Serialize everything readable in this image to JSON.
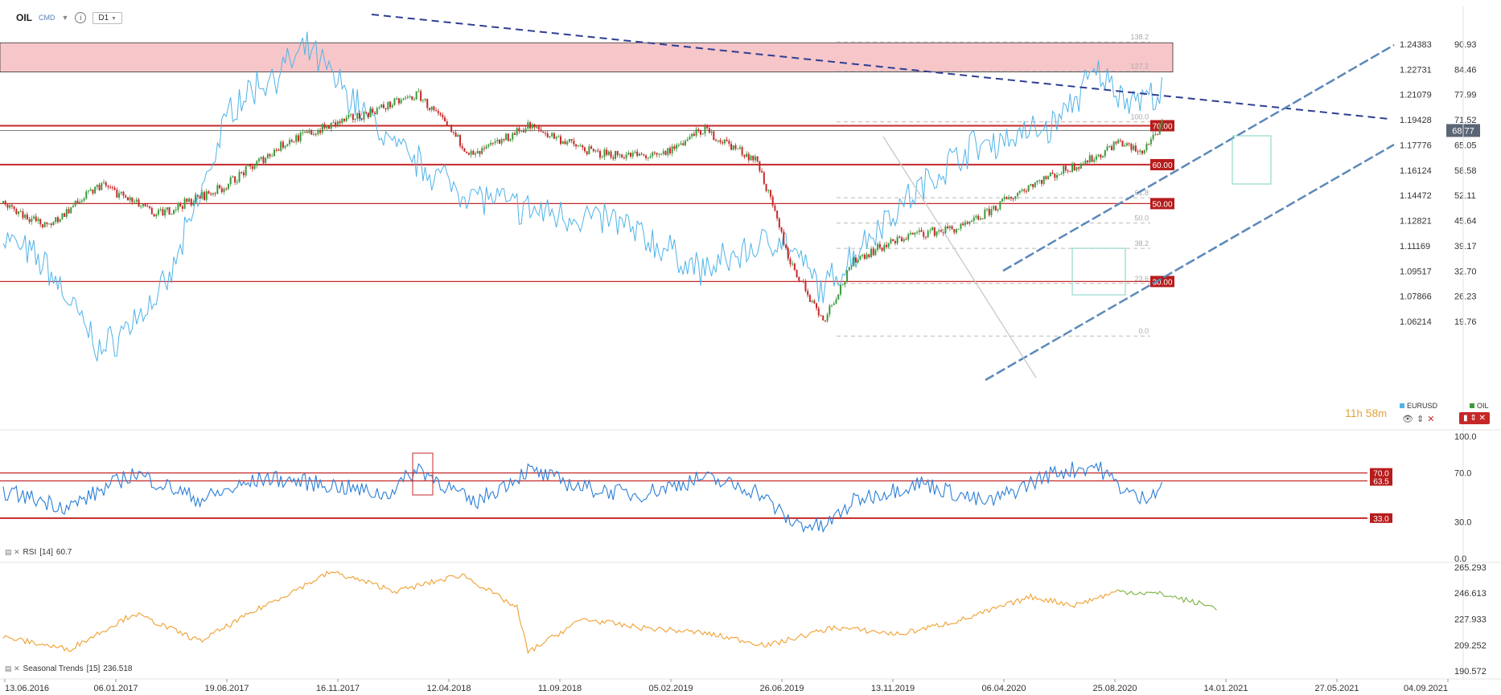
{
  "header": {
    "symbol": "OIL",
    "market": "CMD",
    "timeframe": "D1"
  },
  "timer": {
    "hours": "11",
    "h_unit": "h",
    "minutes": "58",
    "m_unit": "m"
  },
  "legend": {
    "primary": {
      "label": "EURUSD",
      "color": "#4fb3e8"
    },
    "secondary": {
      "label": "OIL",
      "color": "#3c9a3c"
    }
  },
  "colors": {
    "eurusd": "#4fb3e8",
    "oil_up": "#3c9a3c",
    "oil_down": "#c62828",
    "resistance": "#c62828",
    "zone": "#f7c6c9",
    "trend": "#2f3e8f",
    "channel": "#5b88b8",
    "rsi": "#2b7fd8",
    "seasonal": "#f0a030",
    "seasonal_fc": "#7cb342"
  },
  "chart_data": [
    {
      "type": "candlestick",
      "title": "OIL",
      "x_tick_labels": [
        "13.06.2016",
        "06.01.2017",
        "19.06.2017",
        "16.11.2017",
        "12.04.2018",
        "11.09.2018",
        "05.02.2019",
        "26.06.2019",
        "13.11.2019",
        "06.04.2020",
        "25.08.2020",
        "14.01.2021",
        "27.05.2021",
        "04.09.2021"
      ],
      "right_axis_oil": [
        "90.93",
        "84.46",
        "77.99",
        "71.52",
        "65.05",
        "58.58",
        "52.11",
        "45.64",
        "39.17",
        "32.70",
        "26.23",
        "19.76"
      ],
      "left_axis_eurusd": [
        "1.24383",
        "1.22731",
        "1.21079",
        "1.19428",
        "1.17776",
        "1.16124",
        "1.14472",
        "1.12821",
        "1.11169",
        "1.09517",
        "1.07866",
        "1.06214"
      ],
      "current_price": "68.77",
      "resistance_levels": [
        {
          "label": "70.00",
          "value": 70.0
        },
        {
          "label": "60.00",
          "value": 60.0
        },
        {
          "label": "50.00",
          "value": 50.0
        },
        {
          "label": "30.00",
          "value": 30.0
        }
      ],
      "fibonacci_levels": [
        {
          "label": "138.2",
          "value": 91.5
        },
        {
          "label": "127.2",
          "value": 84.0
        },
        {
          "label": "100.0",
          "value": 71.0
        },
        {
          "label": "61.8",
          "value": 51.5
        },
        {
          "label": "50.0",
          "value": 45.0
        },
        {
          "label": "38.2",
          "value": 38.5
        },
        {
          "label": "23.6",
          "value": 29.5
        },
        {
          "label": "0.0",
          "value": 16.0
        }
      ],
      "series": [
        {
          "name": "EURUSD",
          "keypoints": [
            [
              0,
              1.118
            ],
            [
              20,
              1.098
            ],
            [
              45,
              1.042
            ],
            [
              75,
              1.085
            ],
            [
              105,
              1.205
            ],
            [
              140,
              1.24
            ],
            [
              180,
              1.175
            ],
            [
              210,
              1.148
            ],
            [
              240,
              1.135
            ],
            [
              280,
              1.128
            ],
            [
              320,
              1.095
            ],
            [
              355,
              1.118
            ],
            [
              375,
              1.082
            ],
            [
              400,
              1.125
            ],
            [
              440,
              1.175
            ],
            [
              480,
              1.19
            ],
            [
              500,
              1.225
            ],
            [
              515,
              1.208
            ],
            [
              530,
              1.21
            ]
          ]
        },
        {
          "name": "OIL",
          "keypoints": [
            [
              0,
              50
            ],
            [
              20,
              44
            ],
            [
              45,
              55
            ],
            [
              70,
              47
            ],
            [
              100,
              54
            ],
            [
              130,
              66
            ],
            [
              160,
              72
            ],
            [
              190,
              78
            ],
            [
              215,
              62
            ],
            [
              240,
              70
            ],
            [
              270,
              63
            ],
            [
              300,
              62
            ],
            [
              320,
              69
            ],
            [
              345,
              61
            ],
            [
              360,
              35
            ],
            [
              375,
              20
            ],
            [
              390,
              36
            ],
            [
              415,
              42
            ],
            [
              440,
              44
            ],
            [
              470,
              55
            ],
            [
              500,
              62
            ],
            [
              510,
              66
            ],
            [
              520,
              63
            ],
            [
              530,
              70
            ]
          ]
        }
      ]
    },
    {
      "type": "line",
      "title": "RSI",
      "period": "[14]",
      "value": "60.7",
      "y_tick_labels": [
        "100.0",
        "70.0",
        "30.0",
        "0.0"
      ],
      "levels": [
        {
          "label": "70.0",
          "value": 70.0
        },
        {
          "label": "63.5",
          "value": 63.5
        },
        {
          "label": "33.0",
          "value": 33.0
        }
      ],
      "keypoints": [
        [
          0,
          55
        ],
        [
          30,
          42
        ],
        [
          60,
          70
        ],
        [
          90,
          48
        ],
        [
          120,
          66
        ],
        [
          150,
          60
        ],
        [
          175,
          52
        ],
        [
          190,
          74
        ],
        [
          215,
          45
        ],
        [
          240,
          72
        ],
        [
          265,
          58
        ],
        [
          290,
          52
        ],
        [
          320,
          66
        ],
        [
          345,
          55
        ],
        [
          360,
          30
        ],
        [
          375,
          25
        ],
        [
          390,
          48
        ],
        [
          420,
          62
        ],
        [
          450,
          45
        ],
        [
          480,
          70
        ],
        [
          500,
          76
        ],
        [
          510,
          60
        ],
        [
          520,
          48
        ],
        [
          530,
          60
        ]
      ]
    },
    {
      "type": "line",
      "title": "Seasonal Trends",
      "period": "[15]",
      "value": "236.518",
      "y_tick_labels": [
        "265.293",
        "246.613",
        "227.933",
        "209.252",
        "190.572"
      ],
      "keypoints": [
        [
          0,
          215
        ],
        [
          30,
          206
        ],
        [
          60,
          232
        ],
        [
          90,
          212
        ],
        [
          120,
          238
        ],
        [
          150,
          262
        ],
        [
          180,
          248
        ],
        [
          210,
          260
        ],
        [
          235,
          236
        ],
        [
          240,
          204
        ],
        [
          265,
          228
        ],
        [
          290,
          222
        ],
        [
          320,
          218
        ],
        [
          350,
          209
        ],
        [
          380,
          222
        ],
        [
          410,
          217
        ],
        [
          440,
          228
        ],
        [
          470,
          244
        ],
        [
          490,
          238
        ],
        [
          510,
          248
        ],
        [
          530,
          246
        ],
        [
          555,
          236
        ]
      ],
      "forecast_start": 510
    }
  ]
}
